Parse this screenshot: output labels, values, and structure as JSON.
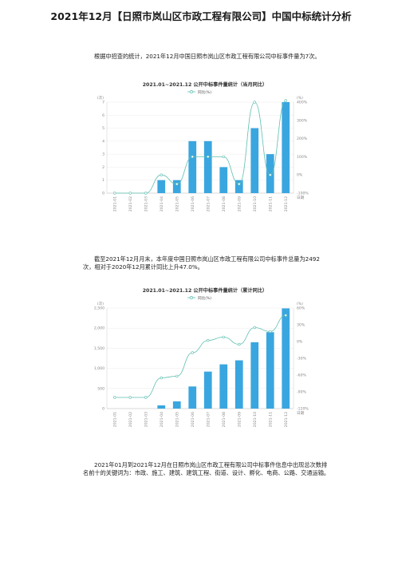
{
  "title": "2021年12月【日照市岚山区市政工程有限公司】中国中标统计分析",
  "para1": "根据中招查的统计，2021年12月中国日照市岚山区市政工程有限公司中标事件量为7次。",
  "para2": "截至2021年12月月末，本年度中国日照市岚山区市政工程有限公司中标事件总量为2492次，相对于2020年12月累计同比上升47.0%。",
  "para3": "2021年01月到2021年12月在日照市岚山区市政工程有限公司中标事件信息中出现总次数排名前十的关键词为：市政、施工、建筑、建筑工程、街道、设计、孵化、电商、公路、交通运输。",
  "colors": {
    "bar": "#3aa6df",
    "line": "#5fbfb0"
  },
  "chart_data": [
    {
      "type": "bar",
      "title": "2021.01~2021.12 公开中标事件量统计（当月同比）",
      "legend": "同比(%)",
      "ylabel": "(次)",
      "y2label": "(%)",
      "x2label": "日期",
      "categories": [
        "2021-01",
        "2021-02",
        "2021-03",
        "2021-04",
        "2021-05",
        "2021-06",
        "2021-07",
        "2021-08",
        "2021-09",
        "2021-10",
        "2021-11",
        "2021-12"
      ],
      "values": [
        0,
        0,
        0,
        1,
        1,
        4,
        4,
        2,
        1,
        5,
        3,
        7
      ],
      "ylim": [
        0,
        7
      ],
      "yticks": [
        "0",
        "1",
        "2",
        "3",
        "4",
        "5",
        "6",
        "7"
      ],
      "y2lim": [
        -100,
        400
      ],
      "y2ticks": [
        "-100%",
        "0%",
        "100%",
        "200%",
        "300%",
        "400%"
      ],
      "line": [
        -100,
        -100,
        -100,
        0,
        -50,
        100,
        100,
        100,
        -50,
        400,
        0,
        600
      ]
    },
    {
      "type": "bar",
      "title": "2021.01~2021.12 公开中标事件量统计（累计同比）",
      "legend": "同比(%)",
      "ylabel": "(次)",
      "y2label": "(%)",
      "x2label": "日期",
      "categories": [
        "2021-01",
        "2021-02",
        "2021-03",
        "2021-04",
        "2021-05",
        "2021-06",
        "2021-07",
        "2021-08",
        "2021-09",
        "2021-10",
        "2021-11",
        "2021-12"
      ],
      "values": [
        0,
        0,
        0,
        80,
        180,
        550,
        920,
        1100,
        1200,
        1650,
        1900,
        2492
      ],
      "ylim": [
        0,
        2500
      ],
      "yticks": [
        "0",
        "500",
        "1,000",
        "1,500",
        "2,000",
        "2,500"
      ],
      "y2lim": [
        -120,
        60
      ],
      "y2ticks": [
        "-120%",
        "-90%",
        "-60%",
        "-30%",
        "0%",
        "30%",
        "60%"
      ],
      "line": [
        -100,
        -100,
        -100,
        -65,
        -62,
        -20,
        2,
        8,
        -5,
        25,
        18,
        47
      ]
    }
  ]
}
